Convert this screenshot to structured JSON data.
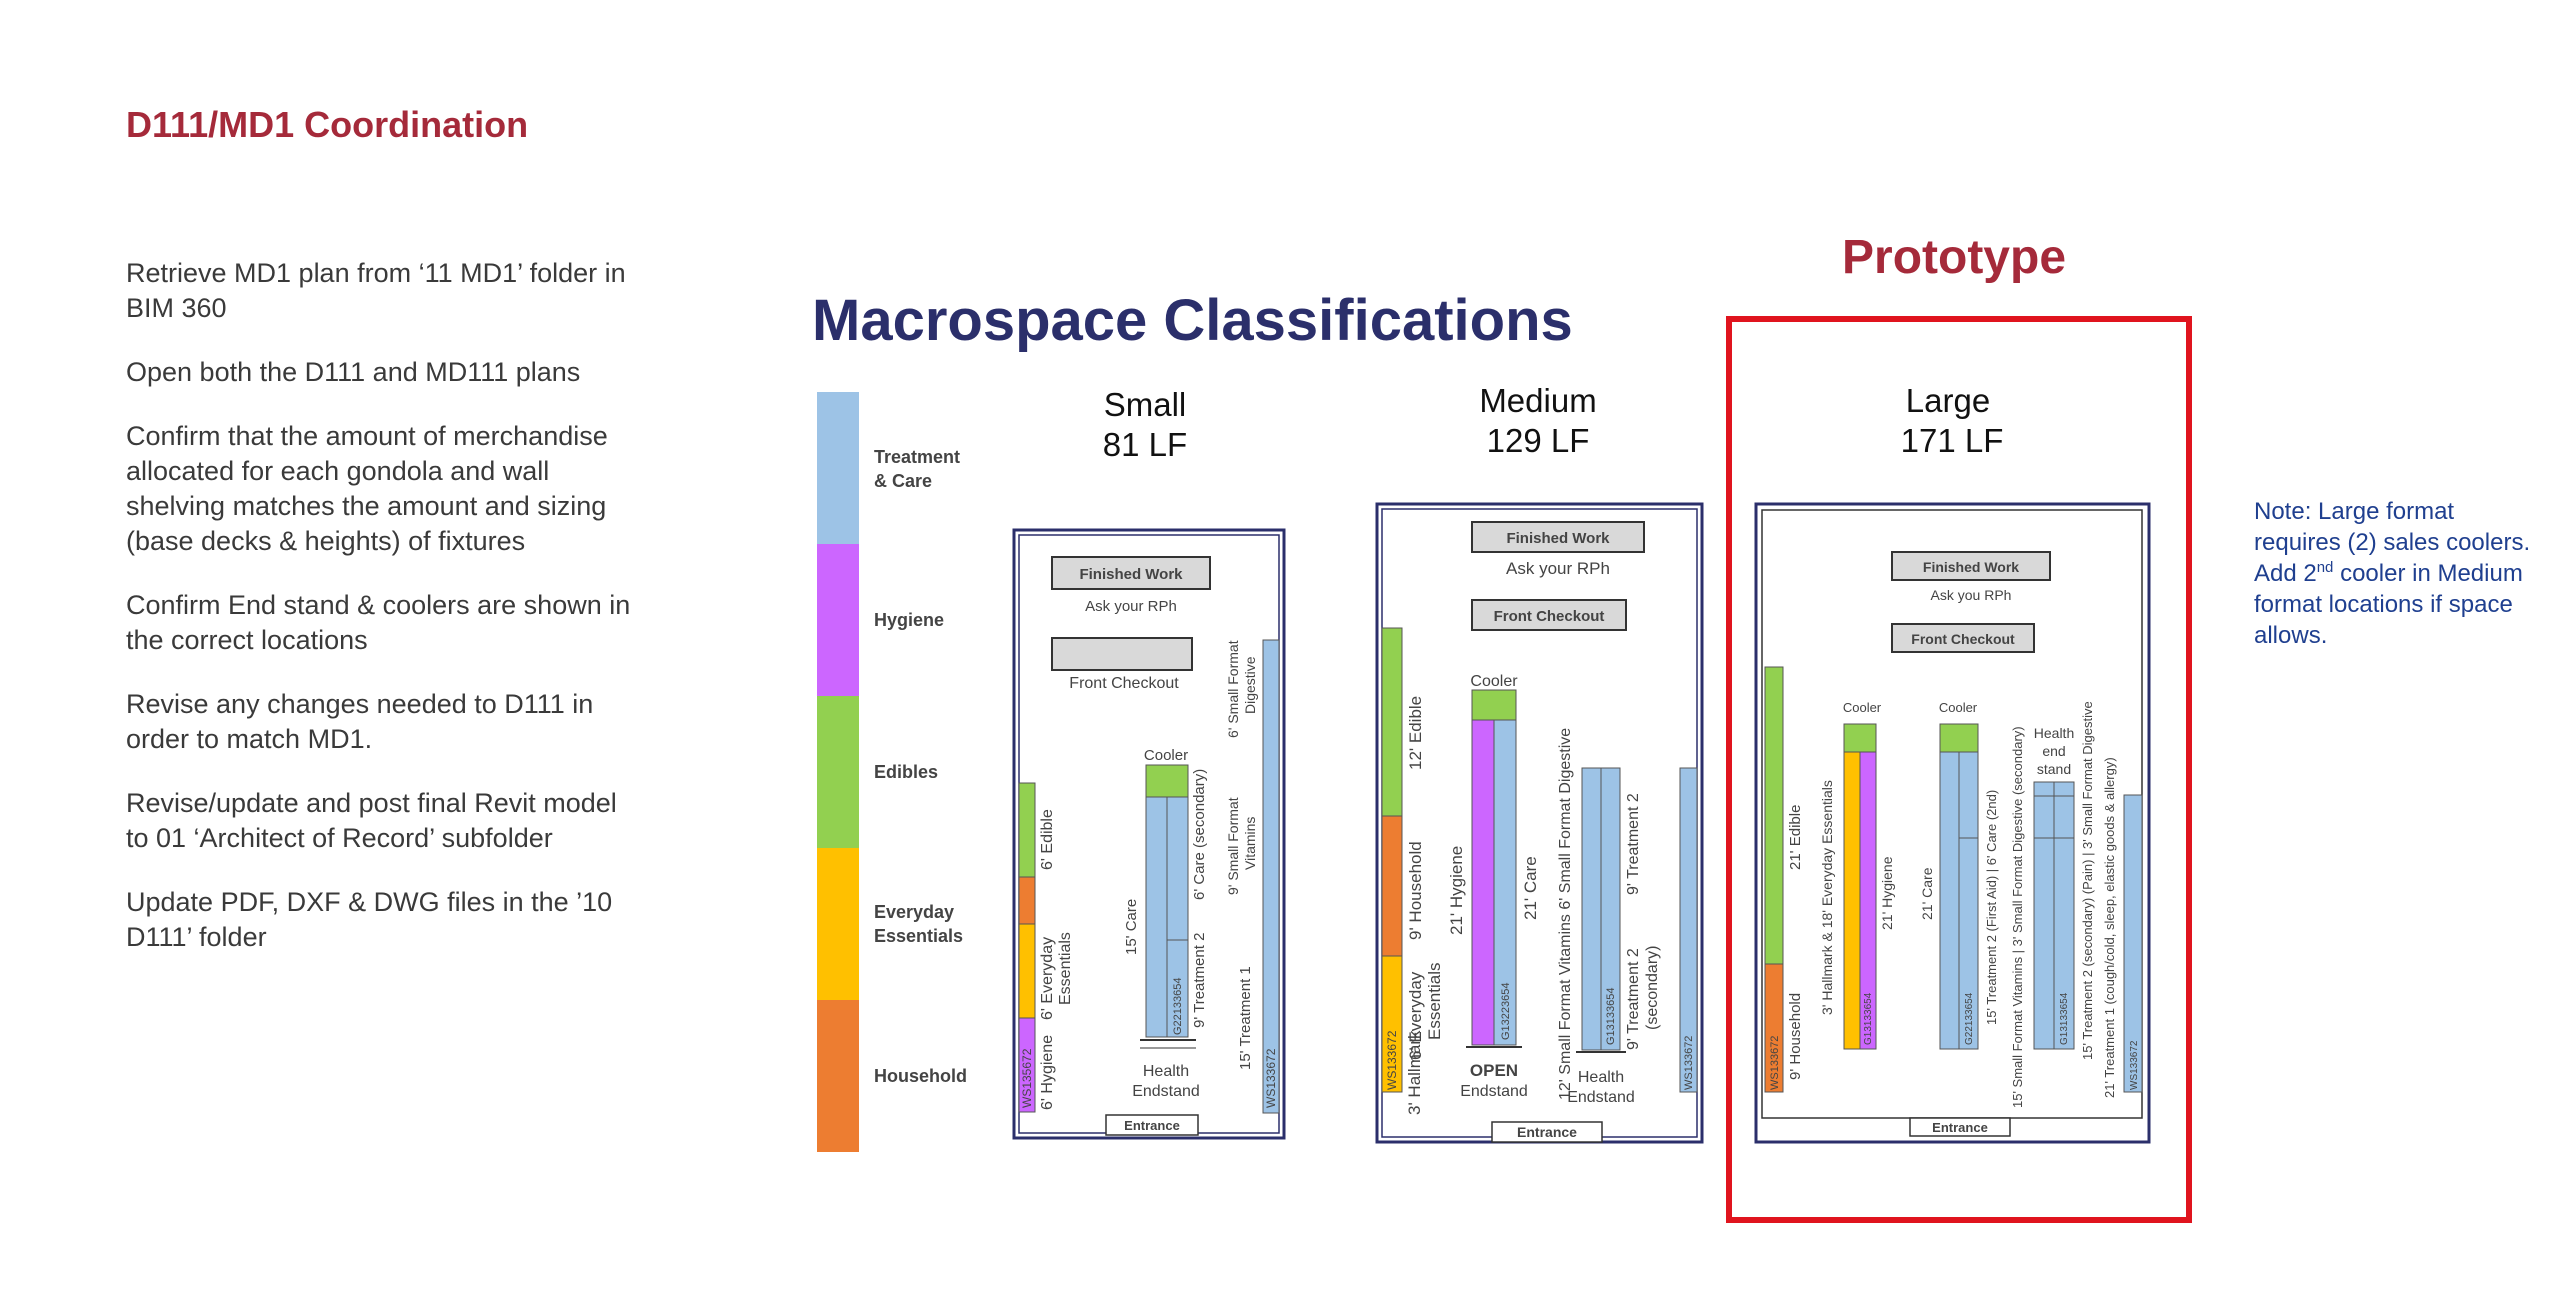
{
  "slide": {
    "title": "D111/MD1 Coordination",
    "steps": [
      "Retrieve MD1 plan from ‘11 MD1’ folder in BIM 360",
      "Open both the D111 and MD111 plans",
      "Confirm that the amount of merchandise allocated for each gondola and wall shelving matches the amount and sizing (base decks & heights) of fixtures",
      "Confirm End stand & coolers are shown in the correct locations",
      "Revise any changes needed to D111 in order to match MD1.",
      "Revise/update and post final Revit model to 01 ‘Architect of Record’ subfolder",
      "Update PDF, DXF & DWG files in the ’10 D111’  folder"
    ],
    "prototype_label": "Prototype",
    "note": {
      "line1": "Note: Large format requires (2) sales coolers.",
      "line2_pre": "Add 2",
      "line2_sup": "nd",
      "line2_post": " cooler in Medium format locations if space allows."
    }
  },
  "diagram": {
    "title": "Macrospace Classifications",
    "legend": [
      {
        "label": "Treatment & Care",
        "color": "#9dc3e6"
      },
      {
        "label": "Hygiene",
        "color": "#cc66ff"
      },
      {
        "label": "Edibles",
        "color": "#92d050"
      },
      {
        "label": "Everyday Essentials",
        "color": "#ffc000"
      },
      {
        "label": "Household",
        "color": "#ed7d31"
      }
    ],
    "formats": [
      {
        "name": "Small",
        "lf": "81 LF"
      },
      {
        "name": "Medium",
        "lf": "129 LF"
      },
      {
        "name": "Large",
        "lf": "171 LF"
      }
    ],
    "common": {
      "finished_work": "Finished Work",
      "ask_rph": "Ask your RPh",
      "ask_rph_large": "Ask you RPh",
      "front_checkout": "Front Checkout",
      "cooler": "Cooler",
      "entrance": "Entrance"
    },
    "small": {
      "edible": "6' Edible",
      "everyday": "6' Everyday Essentials",
      "hygiene": "6' Hygiene",
      "care": "15' Care",
      "care_secondary": "6' Care (secondary)",
      "treatment2": "9' Treatment 2",
      "digestive": "6' Small Format Digestive",
      "vitamins": "9' Small Format Vitamins",
      "treatment1": "15' Treatment 1",
      "health": "Health",
      "endstand": "Endstand",
      "code_left": "WS135672",
      "code_center": "G22133654",
      "code_right": "WS133672"
    },
    "medium": {
      "edible": "12' Edible",
      "household": "9' Household",
      "everyday": "6' Everyday Essentials",
      "hallmark": "3' Hallmark",
      "hygiene": "21' Hygiene",
      "care": "21' Care",
      "vitamins_digestive": "12' Small Format Vitamins  6' Small Format Digestive",
      "treatment2": "9' Treatment 2",
      "treatment2_secondary": "9' Treatment 2 (secondary)",
      "open": "OPEN",
      "endstand": "Endstand",
      "health": "Health",
      "code_left": "WS133672",
      "code_center": "G13223654",
      "code_center2": "G13133654",
      "code_right": "WS133672"
    },
    "large": {
      "edible": "21' Edible",
      "household": "9' Household",
      "hallmark_everyday": "3' Hallmark & 18' Everyday Essentials",
      "hygiene": "21' Hygiene",
      "care": "21' Care",
      "line_a": "15' Treatment 2 (First Aid) | 6' Care (2nd)",
      "line_b": "15' Small Format Vitamins | 3' Small Format Digestive (secondary)",
      "line_c": "15' Treatment 2 (secondary) (Pain) | 3' Small Format Digestive",
      "line_d": "21' Treatment 1 (cough/cold, sleep, elastic goods & allergy)",
      "health": "Health",
      "end": "end",
      "stand": "stand",
      "code_left": "WS133672",
      "code_center": "G13133654",
      "code_center2": "G22133654",
      "code_center3": "G13133654",
      "code_right": "WS133672"
    }
  }
}
